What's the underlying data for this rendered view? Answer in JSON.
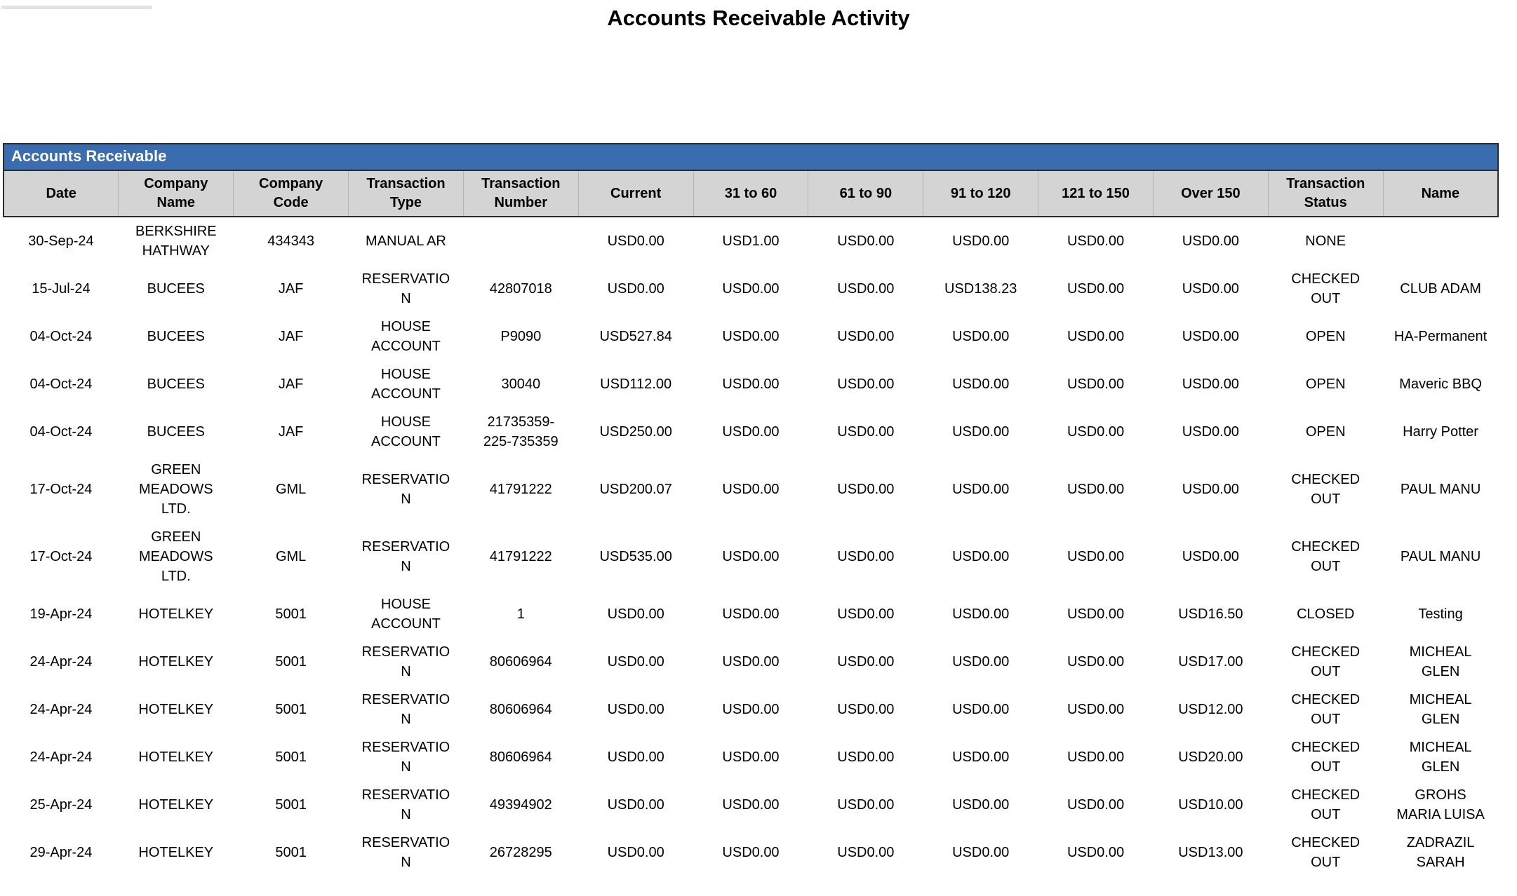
{
  "report": {
    "title": "Accounts Receivable Activity"
  },
  "table": {
    "section_title": "Accounts Receivable",
    "columns": [
      "Date",
      "Company\nName",
      "Company\nCode",
      "Transaction\nType",
      "Transaction\nNumber",
      "Current",
      "31 to 60",
      "61 to 90",
      "91 to 120",
      "121 to 150",
      "Over 150",
      "Transaction\nStatus",
      "Name"
    ],
    "rows": [
      [
        "30-Sep-24",
        "BERKSHIRE\nHATHWAY",
        "434343",
        "MANUAL AR",
        "",
        "USD0.00",
        "USD1.00",
        "USD0.00",
        "USD0.00",
        "USD0.00",
        "USD0.00",
        "NONE",
        ""
      ],
      [
        "15-Jul-24",
        "BUCEES",
        "JAF",
        "RESERVATIO\nN",
        "42807018",
        "USD0.00",
        "USD0.00",
        "USD0.00",
        "USD138.23",
        "USD0.00",
        "USD0.00",
        "CHECKED\nOUT",
        "CLUB ADAM"
      ],
      [
        "04-Oct-24",
        "BUCEES",
        "JAF",
        "HOUSE\nACCOUNT",
        "P9090",
        "USD527.84",
        "USD0.00",
        "USD0.00",
        "USD0.00",
        "USD0.00",
        "USD0.00",
        "OPEN",
        "HA-Permanent"
      ],
      [
        "04-Oct-24",
        "BUCEES",
        "JAF",
        "HOUSE\nACCOUNT",
        "30040",
        "USD112.00",
        "USD0.00",
        "USD0.00",
        "USD0.00",
        "USD0.00",
        "USD0.00",
        "OPEN",
        "Maveric BBQ"
      ],
      [
        "04-Oct-24",
        "BUCEES",
        "JAF",
        "HOUSE\nACCOUNT",
        "21735359-\n225-735359",
        "USD250.00",
        "USD0.00",
        "USD0.00",
        "USD0.00",
        "USD0.00",
        "USD0.00",
        "OPEN",
        "Harry Potter"
      ],
      [
        "17-Oct-24",
        "GREEN\nMEADOWS\nLTD.",
        "GML",
        "RESERVATIO\nN",
        "41791222",
        "USD200.07",
        "USD0.00",
        "USD0.00",
        "USD0.00",
        "USD0.00",
        "USD0.00",
        "CHECKED\nOUT",
        "PAUL MANU"
      ],
      [
        "17-Oct-24",
        "GREEN\nMEADOWS\nLTD.",
        "GML",
        "RESERVATIO\nN",
        "41791222",
        "USD535.00",
        "USD0.00",
        "USD0.00",
        "USD0.00",
        "USD0.00",
        "USD0.00",
        "CHECKED\nOUT",
        "PAUL MANU"
      ],
      [
        "19-Apr-24",
        "HOTELKEY",
        "5001",
        "HOUSE\nACCOUNT",
        "1",
        "USD0.00",
        "USD0.00",
        "USD0.00",
        "USD0.00",
        "USD0.00",
        "USD16.50",
        "CLOSED",
        "Testing"
      ],
      [
        "24-Apr-24",
        "HOTELKEY",
        "5001",
        "RESERVATIO\nN",
        "80606964",
        "USD0.00",
        "USD0.00",
        "USD0.00",
        "USD0.00",
        "USD0.00",
        "USD17.00",
        "CHECKED\nOUT",
        "MICHEAL\nGLEN"
      ],
      [
        "24-Apr-24",
        "HOTELKEY",
        "5001",
        "RESERVATIO\nN",
        "80606964",
        "USD0.00",
        "USD0.00",
        "USD0.00",
        "USD0.00",
        "USD0.00",
        "USD12.00",
        "CHECKED\nOUT",
        "MICHEAL\nGLEN"
      ],
      [
        "24-Apr-24",
        "HOTELKEY",
        "5001",
        "RESERVATIO\nN",
        "80606964",
        "USD0.00",
        "USD0.00",
        "USD0.00",
        "USD0.00",
        "USD0.00",
        "USD20.00",
        "CHECKED\nOUT",
        "MICHEAL\nGLEN"
      ],
      [
        "25-Apr-24",
        "HOTELKEY",
        "5001",
        "RESERVATIO\nN",
        "49394902",
        "USD0.00",
        "USD0.00",
        "USD0.00",
        "USD0.00",
        "USD0.00",
        "USD10.00",
        "CHECKED\nOUT",
        "GROHS\nMARIA LUISA"
      ],
      [
        "29-Apr-24",
        "HOTELKEY",
        "5001",
        "RESERVATIO\nN",
        "26728295",
        "USD0.00",
        "USD0.00",
        "USD0.00",
        "USD0.00",
        "USD0.00",
        "USD13.00",
        "CHECKED\nOUT",
        "ZADRAZIL\nSARAH"
      ]
    ]
  },
  "colors": {
    "section_header_bg": "#3A6CB0",
    "section_header_text": "#FFFFFF",
    "column_header_bg": "#D4D4D4",
    "table_border": "#2B2B2B",
    "body_text": "#000000",
    "top_left_bar": "#E4E4E4"
  }
}
